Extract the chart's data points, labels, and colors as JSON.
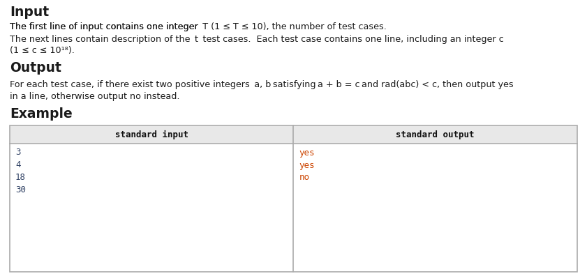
{
  "bg_color": "#ffffff",
  "heading_color": "#1a1a1a",
  "text_color": "#1a1a1a",
  "italic_color": "#1a1a1a",
  "yes_no_color": "#cc4400",
  "input_num_color": "#334466",
  "mono_color": "#cc4400",
  "section_input": "Input",
  "section_output": "Output",
  "section_example": "Example",
  "table_header_left": "standard input",
  "table_header_right": "standard output",
  "table_input": [
    "3",
    "4",
    "18",
    "30"
  ],
  "table_output": [
    "yes",
    "yes",
    "no",
    ""
  ],
  "table_border_color": "#aaaaaa",
  "table_header_bg": "#e8e8e8",
  "figsize": [
    8.41,
    3.96
  ],
  "dpi": 100
}
